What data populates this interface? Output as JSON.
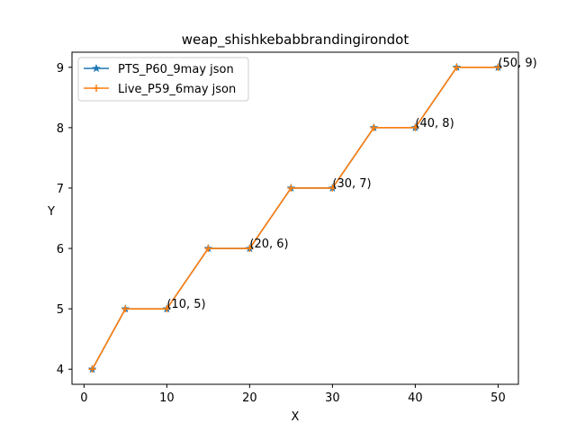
{
  "chart_data": {
    "type": "line",
    "title": "weap_shishkebabbrandingirondot",
    "xlabel": "X",
    "ylabel": "Y",
    "xlim": [
      -1.45,
      52.45
    ],
    "ylim": [
      3.75,
      9.25
    ],
    "xticks": [
      0,
      10,
      20,
      30,
      40,
      50
    ],
    "yticks": [
      4,
      5,
      6,
      7,
      8,
      9
    ],
    "grid": false,
    "legend_position": "upper-left",
    "x": [
      1,
      5,
      10,
      15,
      20,
      25,
      30,
      35,
      40,
      45,
      50
    ],
    "series": [
      {
        "name": "PTS_P60_9may json",
        "values": [
          4,
          5,
          5,
          6,
          6,
          7,
          7,
          8,
          8,
          9,
          9
        ],
        "color": "#1f77b4",
        "marker": "star"
      },
      {
        "name": "Live_P59_6may json",
        "values": [
          4,
          5,
          5,
          6,
          6,
          7,
          7,
          8,
          8,
          9,
          9
        ],
        "color": "#ff7f0e",
        "marker": "plus"
      }
    ],
    "annotations": [
      {
        "x": 10,
        "y": 5,
        "text": "(10, 5)"
      },
      {
        "x": 20,
        "y": 6,
        "text": "(20, 6)"
      },
      {
        "x": 30,
        "y": 7,
        "text": "(30, 7)"
      },
      {
        "x": 40,
        "y": 8,
        "text": "(40, 8)"
      },
      {
        "x": 50,
        "y": 9,
        "text": "(50, 9)"
      }
    ]
  }
}
